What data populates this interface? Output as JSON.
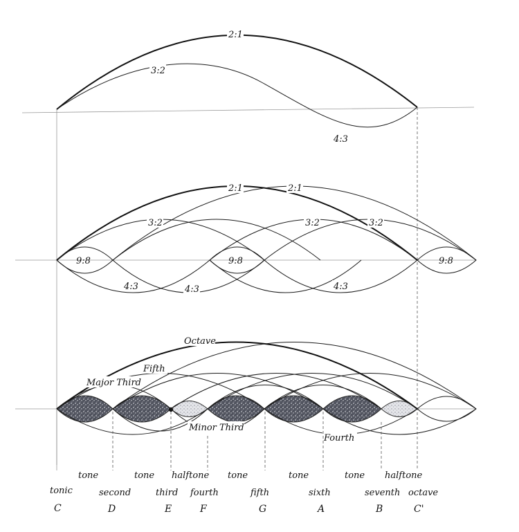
{
  "panel1": {
    "labels": [
      "2:1",
      "3:2",
      "4:3"
    ]
  },
  "panel2": {
    "labels": [
      "2:1",
      "2:1",
      "3:2",
      "3:2",
      "3:2",
      "9:8",
      "9:8",
      "9:8",
      "4:3",
      "4:3",
      "4:3"
    ]
  },
  "panel3": {
    "intervals": [
      "Octave",
      "Fifth",
      "Major Third",
      "Minor Third",
      "Fourth"
    ],
    "steps": [
      "tone",
      "tone",
      "halftone",
      "tone",
      "tone",
      "tone",
      "halftone"
    ],
    "degrees": [
      "tonic",
      "second",
      "third",
      "fourth",
      "fifth",
      "sixth",
      "seventh",
      "octave"
    ],
    "notes": [
      "C",
      "D",
      "E",
      "F",
      "G",
      "A",
      "B",
      "C'"
    ]
  },
  "colors": {
    "ink": "#111111",
    "lens_dark": "#3a3d4a",
    "lens_light": "#c9cad0"
  }
}
